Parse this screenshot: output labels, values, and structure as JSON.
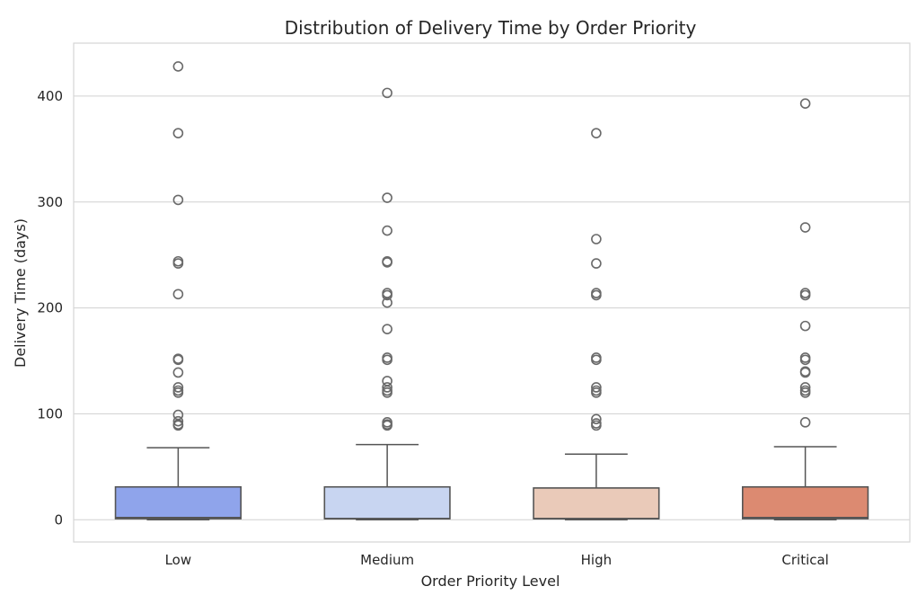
{
  "chart_data": {
    "type": "box",
    "title": "Distribution of Delivery Time by Order Priority",
    "xlabel": "Order Priority Level",
    "ylabel": "Delivery Time (days)",
    "ylim": [
      -21,
      450
    ],
    "yticks": [
      0,
      100,
      200,
      300,
      400
    ],
    "grid": true,
    "legend": "none",
    "categories": [
      "Low",
      "Medium",
      "High",
      "Critical"
    ],
    "boxes": [
      {
        "category": "Low",
        "color": "#8fa4eb",
        "q1": 1,
        "median": 2,
        "q3": 31,
        "whisker_low": 0,
        "whisker_high": 68,
        "outliers": [
          428,
          365,
          302,
          244,
          242,
          213,
          152,
          151,
          139,
          125,
          122,
          120,
          99,
          93,
          90,
          89
        ]
      },
      {
        "category": "Medium",
        "color": "#c8d5f1",
        "q1": 1,
        "median": 1,
        "q3": 31,
        "whisker_low": 0,
        "whisker_high": 71,
        "outliers": [
          403,
          304,
          273,
          244,
          243,
          214,
          212,
          205,
          180,
          153,
          151,
          131,
          125,
          122,
          120,
          92,
          90,
          89
        ]
      },
      {
        "category": "High",
        "color": "#eacab9",
        "q1": 1,
        "median": 1,
        "q3": 30,
        "whisker_low": 0,
        "whisker_high": 62,
        "outliers": [
          365,
          265,
          242,
          214,
          212,
          153,
          151,
          125,
          122,
          120,
          95,
          91,
          89
        ]
      },
      {
        "category": "Critical",
        "color": "#dc8a71",
        "q1": 1,
        "median": 2,
        "q3": 31,
        "whisker_low": 0,
        "whisker_high": 69,
        "outliers": [
          393,
          276,
          214,
          212,
          183,
          153,
          151,
          140,
          139,
          125,
          122,
          120,
          92
        ]
      }
    ]
  }
}
